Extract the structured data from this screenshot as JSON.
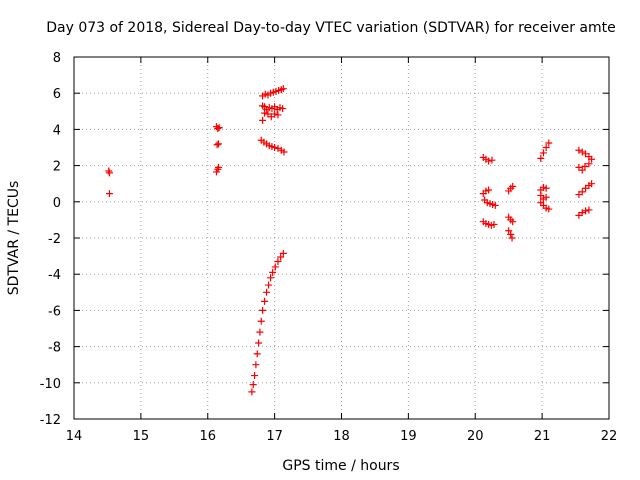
{
  "chart_data": {
    "type": "scatter",
    "title": "Day 073 of 2018, Sidereal Day-to-day VTEC variation (SDTVAR) for receiver amte",
    "xlabel": "GPS time / hours",
    "ylabel": "SDTVAR / TECUs",
    "xlim": [
      14,
      22
    ],
    "ylim": [
      -12,
      8
    ],
    "xticks": [
      14,
      15,
      16,
      17,
      18,
      19,
      20,
      21,
      22
    ],
    "yticks": [
      -12,
      -10,
      -8,
      -6,
      -4,
      -2,
      0,
      2,
      4,
      6,
      8
    ],
    "grid": true,
    "marker": "+",
    "series": [
      {
        "name": "SDTVAR",
        "color": "#ff0000",
        "points": [
          [
            14.52,
            1.7
          ],
          [
            14.53,
            1.6
          ],
          [
            14.53,
            0.45
          ],
          [
            16.13,
            4.15
          ],
          [
            16.15,
            4.05
          ],
          [
            16.17,
            4.1
          ],
          [
            16.14,
            3.15
          ],
          [
            16.16,
            3.2
          ],
          [
            16.13,
            1.65
          ],
          [
            16.15,
            1.8
          ],
          [
            16.16,
            1.9
          ],
          [
            16.82,
            5.85
          ],
          [
            16.86,
            5.95
          ],
          [
            16.9,
            5.9
          ],
          [
            16.94,
            6.0
          ],
          [
            16.98,
            6.05
          ],
          [
            17.02,
            6.1
          ],
          [
            17.06,
            6.15
          ],
          [
            17.1,
            6.2
          ],
          [
            17.13,
            6.25
          ],
          [
            16.82,
            5.3
          ],
          [
            16.85,
            5.25
          ],
          [
            16.88,
            5.1
          ],
          [
            16.92,
            5.2
          ],
          [
            16.96,
            5.15
          ],
          [
            17.0,
            5.25
          ],
          [
            17.04,
            5.1
          ],
          [
            17.08,
            5.2
          ],
          [
            17.12,
            5.15
          ],
          [
            16.85,
            4.9
          ],
          [
            16.9,
            4.85
          ],
          [
            16.95,
            4.7
          ],
          [
            17.0,
            4.85
          ],
          [
            17.05,
            4.8
          ],
          [
            16.82,
            4.5
          ],
          [
            16.8,
            3.4
          ],
          [
            16.84,
            3.3
          ],
          [
            16.88,
            3.2
          ],
          [
            16.92,
            3.1
          ],
          [
            16.96,
            3.05
          ],
          [
            17.0,
            3.0
          ],
          [
            17.05,
            2.95
          ],
          [
            17.1,
            2.85
          ],
          [
            17.14,
            2.75
          ],
          [
            16.66,
            -10.5
          ],
          [
            16.68,
            -10.1
          ],
          [
            16.7,
            -9.6
          ],
          [
            16.72,
            -9.0
          ],
          [
            16.74,
            -8.4
          ],
          [
            16.76,
            -7.8
          ],
          [
            16.78,
            -7.2
          ],
          [
            16.8,
            -6.6
          ],
          [
            16.82,
            -6.0
          ],
          [
            16.85,
            -5.5
          ],
          [
            16.88,
            -5.0
          ],
          [
            16.91,
            -4.6
          ],
          [
            16.94,
            -4.2
          ],
          [
            16.97,
            -3.9
          ],
          [
            17.01,
            -3.6
          ],
          [
            17.05,
            -3.3
          ],
          [
            17.09,
            -3.05
          ],
          [
            17.13,
            -2.85
          ],
          [
            20.12,
            2.45
          ],
          [
            20.16,
            2.35
          ],
          [
            20.2,
            2.25
          ],
          [
            20.25,
            2.3
          ],
          [
            20.12,
            0.45
          ],
          [
            20.16,
            0.6
          ],
          [
            20.2,
            0.65
          ],
          [
            20.14,
            0.1
          ],
          [
            20.18,
            -0.05
          ],
          [
            20.22,
            -0.1
          ],
          [
            20.26,
            -0.15
          ],
          [
            20.3,
            -0.2
          ],
          [
            20.12,
            -1.1
          ],
          [
            20.16,
            -1.2
          ],
          [
            20.2,
            -1.25
          ],
          [
            20.24,
            -1.3
          ],
          [
            20.28,
            -1.25
          ],
          [
            20.5,
            0.6
          ],
          [
            20.53,
            0.75
          ],
          [
            20.56,
            0.85
          ],
          [
            20.5,
            -0.85
          ],
          [
            20.53,
            -1.0
          ],
          [
            20.56,
            -1.1
          ],
          [
            20.5,
            -1.6
          ],
          [
            20.53,
            -1.8
          ],
          [
            20.55,
            -2.0
          ],
          [
            20.98,
            2.4
          ],
          [
            21.02,
            2.7
          ],
          [
            21.06,
            3.0
          ],
          [
            21.1,
            3.25
          ],
          [
            20.98,
            0.65
          ],
          [
            21.02,
            0.8
          ],
          [
            21.06,
            0.75
          ],
          [
            20.98,
            0.35
          ],
          [
            21.02,
            0.15
          ],
          [
            21.06,
            0.25
          ],
          [
            20.98,
            -0.05
          ],
          [
            21.02,
            -0.2
          ],
          [
            21.06,
            -0.35
          ],
          [
            21.1,
            -0.4
          ],
          [
            21.55,
            2.85
          ],
          [
            21.6,
            2.75
          ],
          [
            21.65,
            2.65
          ],
          [
            21.7,
            2.5
          ],
          [
            21.74,
            2.35
          ],
          [
            21.55,
            1.9
          ],
          [
            21.6,
            1.75
          ],
          [
            21.64,
            1.95
          ],
          [
            21.7,
            2.1
          ],
          [
            21.55,
            0.4
          ],
          [
            21.6,
            0.55
          ],
          [
            21.65,
            0.75
          ],
          [
            21.7,
            0.9
          ],
          [
            21.74,
            1.0
          ],
          [
            21.55,
            -0.75
          ],
          [
            21.6,
            -0.6
          ],
          [
            21.65,
            -0.5
          ],
          [
            21.7,
            -0.45
          ]
        ]
      }
    ]
  }
}
